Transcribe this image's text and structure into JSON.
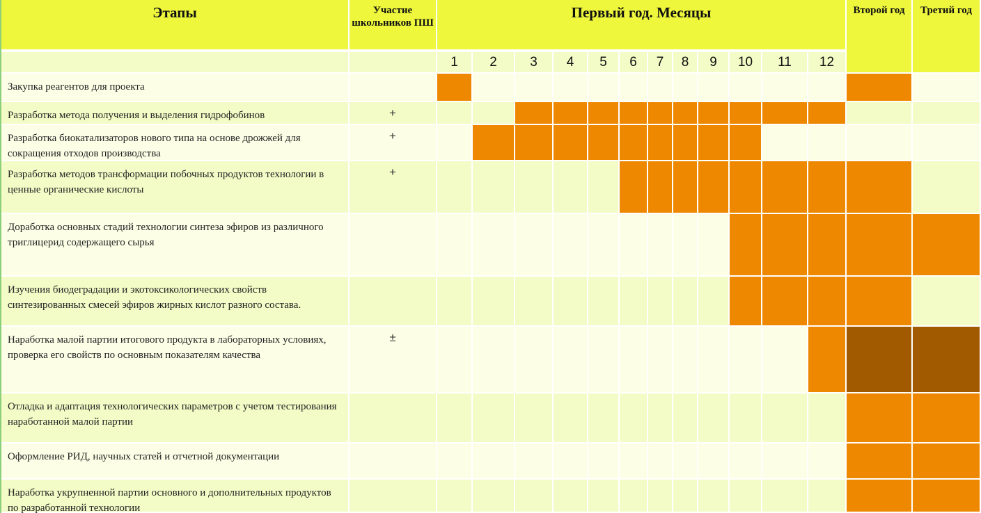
{
  "header": {
    "stages": "Этапы",
    "participation": "Участие школьников ПШ",
    "first_year": "Первый год. Месяцы",
    "second_year": "Второй год",
    "third_year": "Третий год",
    "months": [
      "1",
      "2",
      "3",
      "4",
      "5",
      "6",
      "7",
      "8",
      "9",
      "10",
      "11",
      "12"
    ]
  },
  "colors": {
    "header": "#eef73c",
    "row_light": "#fcffe6",
    "row_alt": "#f3fbc6",
    "active": "#ee8800",
    "active_dark": "#a15a00"
  },
  "rows": [
    {
      "stage": "Закупка реагентов для проекта",
      "participation": "",
      "months": [
        1
      ],
      "year2": "active",
      "year3": ""
    },
    {
      "stage": "Разработка метода получения и выделения гидрофобинов",
      "participation": "+",
      "months": [
        3,
        4,
        5,
        6,
        7,
        8,
        9,
        10,
        11,
        12
      ],
      "year2": "",
      "year3": ""
    },
    {
      "stage": "Разработка биокатализаторов нового типа на основе дрожжей для сокращения отходов производства",
      "participation": "+",
      "months": [
        2,
        3,
        4,
        5,
        6,
        7,
        8,
        9,
        10
      ],
      "year2": "",
      "year3": ""
    },
    {
      "stage": "Разработка методов трансформации побочных продуктов технологии в ценные органические кислоты",
      "participation": "+",
      "months": [
        6,
        7,
        8,
        9,
        10,
        11,
        12
      ],
      "year2": "active",
      "year3": ""
    },
    {
      "stage": "Доработка основных стадий технологии синтеза эфиров из различного триглицерид содержащего сырья",
      "participation": "",
      "months": [
        10,
        11,
        12
      ],
      "year2": "active",
      "year3": "active"
    },
    {
      "stage": "Изучения биодеградации и экотоксикологических свойств синтезированных смесей эфиров жирных кислот разного состава.",
      "participation": "",
      "months": [
        10,
        11,
        12
      ],
      "year2": "active",
      "year3": ""
    },
    {
      "stage": "Наработка малой партии итогового продукта в лабораторных условиях, проверка его свойств по основным показателям качества",
      "participation": "±",
      "months": [
        12
      ],
      "year2": "dark",
      "year3": "dark"
    },
    {
      "stage": "Отладка и адаптация технологических параметров с учетом тестирования наработанной малой партии",
      "participation": "",
      "months": [],
      "year2": "active",
      "year3": "active"
    },
    {
      "stage": "Оформление РИД, научных статей и отчетной документации",
      "participation": "",
      "months": [],
      "year2": "active",
      "year3": "active"
    },
    {
      "stage": "Наработка укрупненной партии основного и дополнительных продуктов по разработанной технологии",
      "participation": "",
      "months": [],
      "year2": "active",
      "year3": "active"
    }
  ]
}
